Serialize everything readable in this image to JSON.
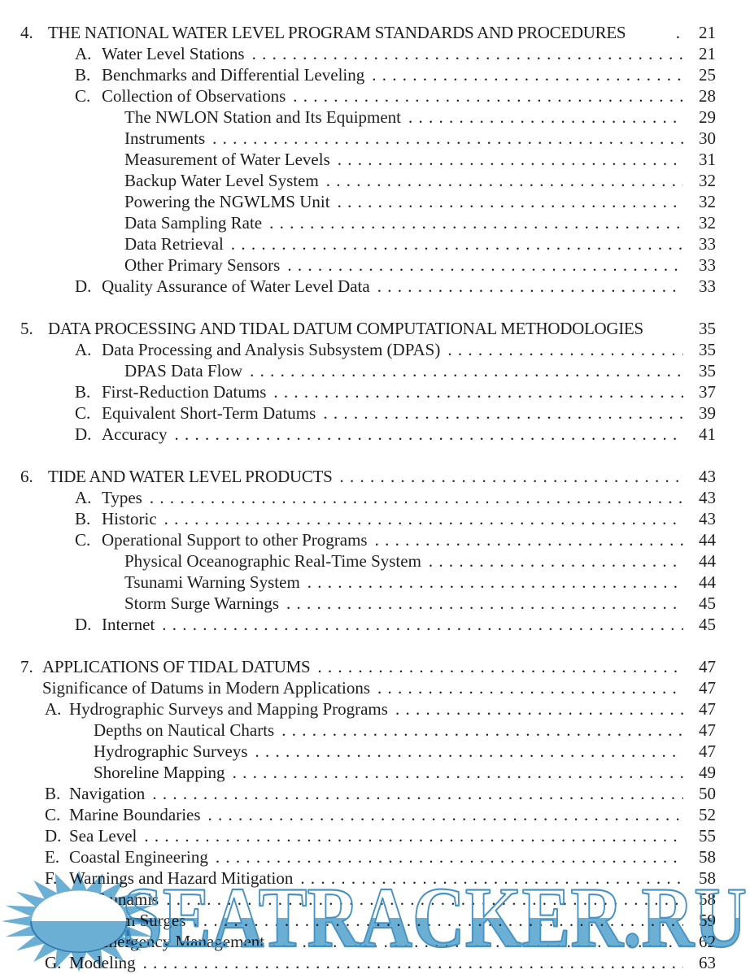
{
  "watermark": {
    "text": "SEATRACKER.RU",
    "fill_color": "#5ba6cf",
    "outline_color": "#4793c3",
    "logo": "sunrise-over-water-icon"
  },
  "toc": {
    "sections": [
      {
        "compact": false,
        "rows": [
          {
            "pre": "4.",
            "label": "THE NATIONAL WATER LEVEL PROGRAM STANDARDS AND PROCEDURES",
            "page": "21",
            "lv": "l0",
            "leader": "dot1"
          },
          {
            "pre": "A.",
            "label": "Water Level Stations",
            "page": "21",
            "lv": "l1",
            "leader": "dots"
          },
          {
            "pre": "B.",
            "label": "Benchmarks and Differential Leveling",
            "page": "25",
            "lv": "l1",
            "leader": "dots"
          },
          {
            "pre": "C.",
            "label": "Collection of Observations",
            "page": "28",
            "lv": "l1",
            "leader": "dots"
          },
          {
            "label": "The NWLON Station and Its Equipment",
            "page": "29",
            "lv": "l2",
            "leader": "dots"
          },
          {
            "label": "Instruments",
            "page": "30",
            "lv": "l2",
            "leader": "dots"
          },
          {
            "label": "Measurement of Water Levels",
            "page": "31",
            "lv": "l2",
            "leader": "dots"
          },
          {
            "label": "Backup Water Level System",
            "page": "32",
            "lv": "l2",
            "leader": "dots"
          },
          {
            "label": "Powering the NGWLMS Unit",
            "page": "32",
            "lv": "l2",
            "leader": "dots"
          },
          {
            "label": "Data Sampling Rate",
            "page": "32",
            "lv": "l2",
            "leader": "dots"
          },
          {
            "label": "Data Retrieval",
            "page": "33",
            "lv": "l2",
            "leader": "dots"
          },
          {
            "label": "Other Primary Sensors",
            "page": "33",
            "lv": "l2",
            "leader": "dots"
          },
          {
            "pre": "D.",
            "label": "Quality Assurance of Water Level Data",
            "page": "33",
            "lv": "l1",
            "leader": "dots"
          }
        ]
      },
      {
        "compact": false,
        "rows": [
          {
            "pre": "5.",
            "label": "DATA PROCESSING AND TIDAL DATUM COMPUTATIONAL METHODOLOGIES",
            "page": "35",
            "lv": "l0",
            "leader": "none"
          },
          {
            "pre": "A.",
            "label": "Data Processing and Analysis Subsystem (DPAS)",
            "page": "35",
            "lv": "l1",
            "leader": "dots"
          },
          {
            "label": "DPAS Data Flow",
            "page": "35",
            "lv": "l2",
            "leader": "dots"
          },
          {
            "pre": "B.",
            "label": "First-Reduction Datums",
            "page": "37",
            "lv": "l1",
            "leader": "dots"
          },
          {
            "pre": "C.",
            "label": "Equivalent Short-Term Datums",
            "page": "39",
            "lv": "l1",
            "leader": "dots"
          },
          {
            "pre": "D.",
            "label": "Accuracy",
            "page": "41",
            "lv": "l1",
            "leader": "dots"
          }
        ]
      },
      {
        "compact": false,
        "rows": [
          {
            "pre": "6.",
            "label": "TIDE AND WATER LEVEL PRODUCTS",
            "page": "43",
            "lv": "l0",
            "leader": "dots"
          },
          {
            "pre": "A.",
            "label": "Types",
            "page": "43",
            "lv": "l1",
            "leader": "dots"
          },
          {
            "pre": "B.",
            "label": "Historic",
            "page": "43",
            "lv": "l1",
            "leader": "dots"
          },
          {
            "pre": "C.",
            "label": "Operational Support to other Programs",
            "page": "44",
            "lv": "l1",
            "leader": "dots"
          },
          {
            "label": "Physical Oceanographic Real-Time System",
            "page": "44",
            "lv": "l2",
            "leader": "dots"
          },
          {
            "label": "Tsunami Warning System",
            "page": "44",
            "lv": "l2",
            "leader": "dots"
          },
          {
            "label": "Storm Surge Warnings",
            "page": "45",
            "lv": "l2",
            "leader": "dots"
          },
          {
            "pre": "D.",
            "label": "Internet",
            "page": "45",
            "lv": "l1",
            "leader": "dots"
          }
        ]
      },
      {
        "compact": true,
        "rows": [
          {
            "pre": "7.",
            "label": "APPLICATIONS OF TIDAL DATUMS",
            "page": "47",
            "lv": "l0",
            "leader": "dots"
          },
          {
            "label": "Significance of Datums in Modern Applications",
            "page": "47",
            "lv": "lt",
            "leader": "dots"
          },
          {
            "pre": "A.",
            "label": "Hydrographic Surveys and Mapping Programs",
            "page": "47",
            "lv": "l1",
            "leader": "dots"
          },
          {
            "label": "Depths on Nautical Charts",
            "page": "47",
            "lv": "l2",
            "leader": "dots"
          },
          {
            "label": "Hydrographic Surveys",
            "page": "47",
            "lv": "l2",
            "leader": "dots"
          },
          {
            "label": "Shoreline Mapping",
            "page": "49",
            "lv": "l2",
            "leader": "dots"
          },
          {
            "pre": "B.",
            "label": "Navigation",
            "page": "50",
            "lv": "l1",
            "leader": "dots"
          },
          {
            "pre": "C.",
            "label": "Marine Boundaries",
            "page": "52",
            "lv": "l1",
            "leader": "dots"
          },
          {
            "pre": "D.",
            "label": "Sea Level",
            "page": "55",
            "lv": "l1",
            "leader": "dots"
          },
          {
            "pre": "E.",
            "label": "Coastal Engineering",
            "page": "58",
            "lv": "l1",
            "leader": "dots"
          },
          {
            "pre": "F.",
            "label": "Warnings and Hazard Mitigation",
            "page": "58",
            "lv": "l1",
            "leader": "dots"
          },
          {
            "label": "Tsunamis",
            "page": "58",
            "lv": "l2",
            "leader": "dots"
          },
          {
            "label": "Storm Surges",
            "page": "59",
            "lv": "l2",
            "leader": "dots"
          },
          {
            "label": "Emergency Management",
            "page": "62",
            "lv": "l2",
            "leader": "dots"
          },
          {
            "pre": "G.",
            "label": "Modeling",
            "page": "63",
            "lv": "l1",
            "leader": "dots"
          }
        ]
      }
    ]
  }
}
